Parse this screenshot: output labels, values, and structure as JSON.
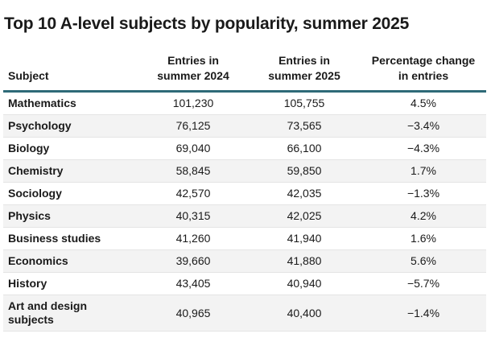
{
  "title": "Top 10 A-level subjects by popularity, summer 2025",
  "table": {
    "header": [
      "Subject",
      "Entries in summer 2024",
      "Entries in summer 2025",
      "Percentage change in entries"
    ],
    "rows": [
      [
        "Mathematics",
        "101,230",
        "105,755",
        "4.5%"
      ],
      [
        "Psychology",
        "76,125",
        "73,565",
        "−3.4%"
      ],
      [
        "Biology",
        "69,040",
        "66,100",
        "−4.3%"
      ],
      [
        "Chemistry",
        "58,845",
        "59,850",
        "1.7%"
      ],
      [
        "Sociology",
        "42,570",
        "42,035",
        "−1.3%"
      ],
      [
        "Physics",
        "40,315",
        "42,025",
        "4.2%"
      ],
      [
        "Business studies",
        "41,260",
        "41,940",
        "1.6%"
      ],
      [
        "Economics",
        "39,660",
        "41,880",
        "5.6%"
      ],
      [
        "History",
        "43,405",
        "40,940",
        "−5.7%"
      ],
      [
        "Art and design subjects",
        "40,965",
        "40,400",
        "−1.4%"
      ]
    ]
  }
}
